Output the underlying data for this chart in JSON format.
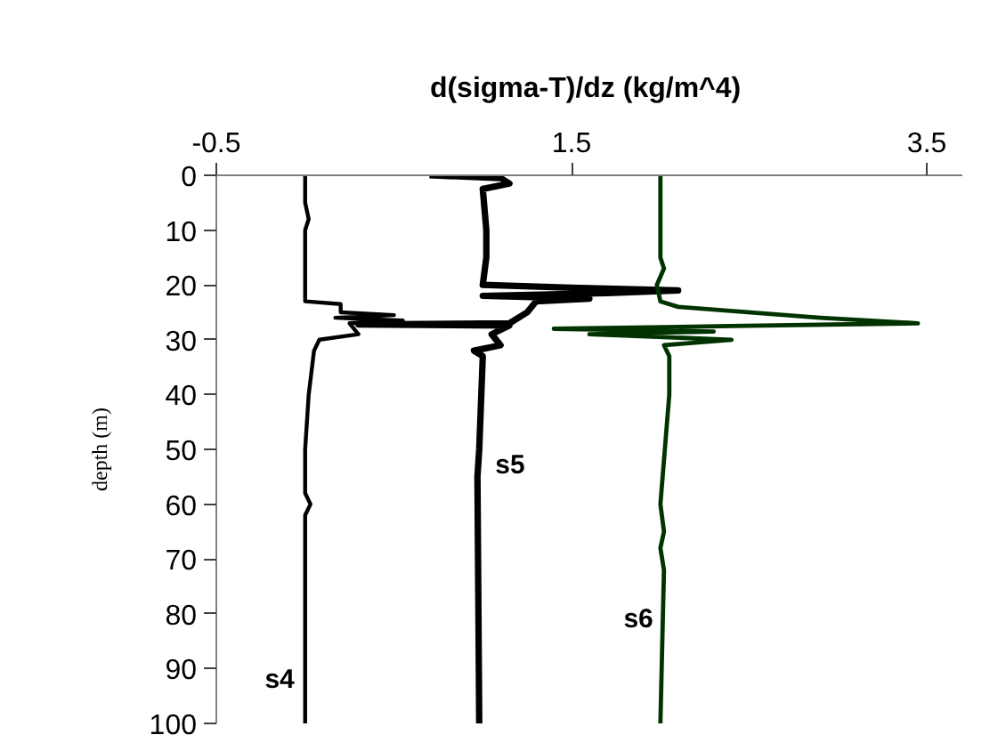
{
  "chart_data": {
    "type": "line",
    "orientation": "horizontal",
    "xlabel": "d(sigma-T)/dz  (kg/m^4)",
    "ylabel": "depth (m)",
    "xlim": [
      -0.5,
      3.7
    ],
    "xticks": [
      -0.5,
      1.5,
      3.5
    ],
    "ylim": [
      100,
      0
    ],
    "yticks": [
      0,
      10,
      20,
      30,
      40,
      50,
      60,
      70,
      80,
      90,
      100
    ],
    "grid": false,
    "marker": "none",
    "line_style": "solid",
    "series": [
      {
        "name": "s4",
        "color": "#000000",
        "x": [
          0,
          5,
          8,
          10,
          23,
          23.5,
          25,
          25.5,
          26,
          26.5,
          27,
          29,
          30,
          32,
          40,
          50,
          58,
          60,
          62,
          100
        ],
        "values": [
          0,
          0,
          0.02,
          0,
          0,
          0.2,
          0.2,
          0.5,
          0.17,
          0.55,
          0.25,
          0.3,
          0.08,
          0.05,
          0.02,
          0,
          0,
          0.03,
          0,
          0
        ]
      },
      {
        "name": "s5",
        "color": "#000000",
        "x": [
          0,
          0.5,
          1.5,
          2.5,
          10,
          15,
          20,
          20.5,
          21,
          21.5,
          22,
          22.5,
          23,
          25,
          27,
          27.2,
          27.4,
          29,
          31,
          32,
          33,
          50,
          55,
          100
        ],
        "values": [
          0.7,
          1.1,
          1.15,
          1.0,
          1.02,
          1.02,
          1.0,
          1.5,
          2.1,
          1.7,
          1.0,
          1.6,
          1.3,
          1.25,
          1.15,
          0.3,
          1.15,
          1.05,
          1.1,
          0.95,
          1.0,
          0.98,
          0.97,
          0.98
        ]
      },
      {
        "name": "s6",
        "color": "#003300",
        "x": [
          0,
          15,
          17,
          20,
          23,
          24,
          26,
          27,
          27.5,
          28,
          28.5,
          29,
          30,
          31,
          33,
          40,
          60,
          65,
          68,
          72,
          100
        ],
        "values": [
          2.0,
          2.0,
          2.02,
          1.98,
          2.0,
          2.1,
          2.9,
          3.45,
          2.4,
          1.4,
          2.3,
          1.6,
          2.4,
          2.02,
          2.05,
          2.05,
          2.0,
          2.02,
          2.0,
          2.02,
          2.0
        ]
      }
    ]
  }
}
